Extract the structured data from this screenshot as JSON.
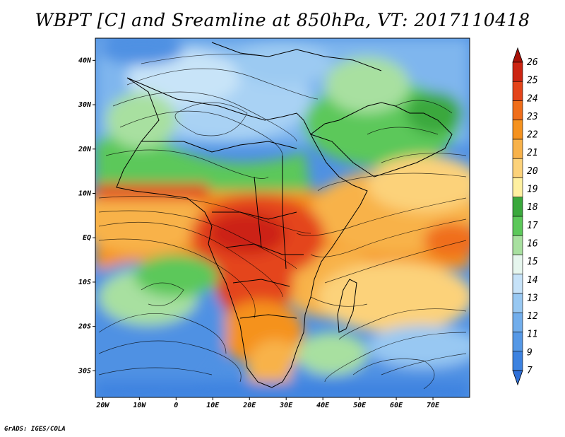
{
  "title": "WBPT [C] and Sreamline at 850hPa, VT: 2017110418",
  "credit": "GrADS: IGES/COLA",
  "map": {
    "lon_range": [
      -22,
      80
    ],
    "lat_range": [
      -36,
      45
    ],
    "x_ticks": [
      "20W",
      "10W",
      "0",
      "10E",
      "20E",
      "30E",
      "40E",
      "50E",
      "60E",
      "70E"
    ],
    "x_tick_values": [
      -20,
      -10,
      0,
      10,
      20,
      30,
      40,
      50,
      60,
      70
    ],
    "y_ticks": [
      "40N",
      "30N",
      "20N",
      "10N",
      "EQ",
      "10S",
      "20S",
      "30S"
    ],
    "y_tick_values": [
      40,
      30,
      20,
      10,
      0,
      -10,
      -20,
      -30
    ]
  },
  "colorbar": {
    "labels": [
      "7",
      "9",
      "11",
      "12",
      "13",
      "14",
      "15",
      "16",
      "17",
      "18",
      "19",
      "20",
      "21",
      "22",
      "23",
      "24",
      "25",
      "26"
    ],
    "colors": [
      "#2e6fd8",
      "#3c82e0",
      "#5598e6",
      "#72aeec",
      "#98c8f2",
      "#c6e2f8",
      "#e6f6ee",
      "#a8e0a0",
      "#5cc85a",
      "#3aa83c",
      "#fff0a0",
      "#fcd27a",
      "#f8b24a",
      "#f5921f",
      "#f06e1a",
      "#e4441a",
      "#cc2412",
      "#a81208"
    ]
  },
  "chart_data": {
    "type": "heatmap",
    "title": "WBPT [C] and Sreamline at 850hPa, VT: 2017110418",
    "x_unit": "longitude",
    "y_unit": "latitude",
    "xlim": [
      -22,
      80
    ],
    "ylim": [
      -36,
      45
    ],
    "value_scale": [
      7,
      9,
      11,
      12,
      13,
      14,
      15,
      16,
      17,
      18,
      19,
      20,
      21,
      22,
      23,
      24,
      25,
      26
    ]
  }
}
